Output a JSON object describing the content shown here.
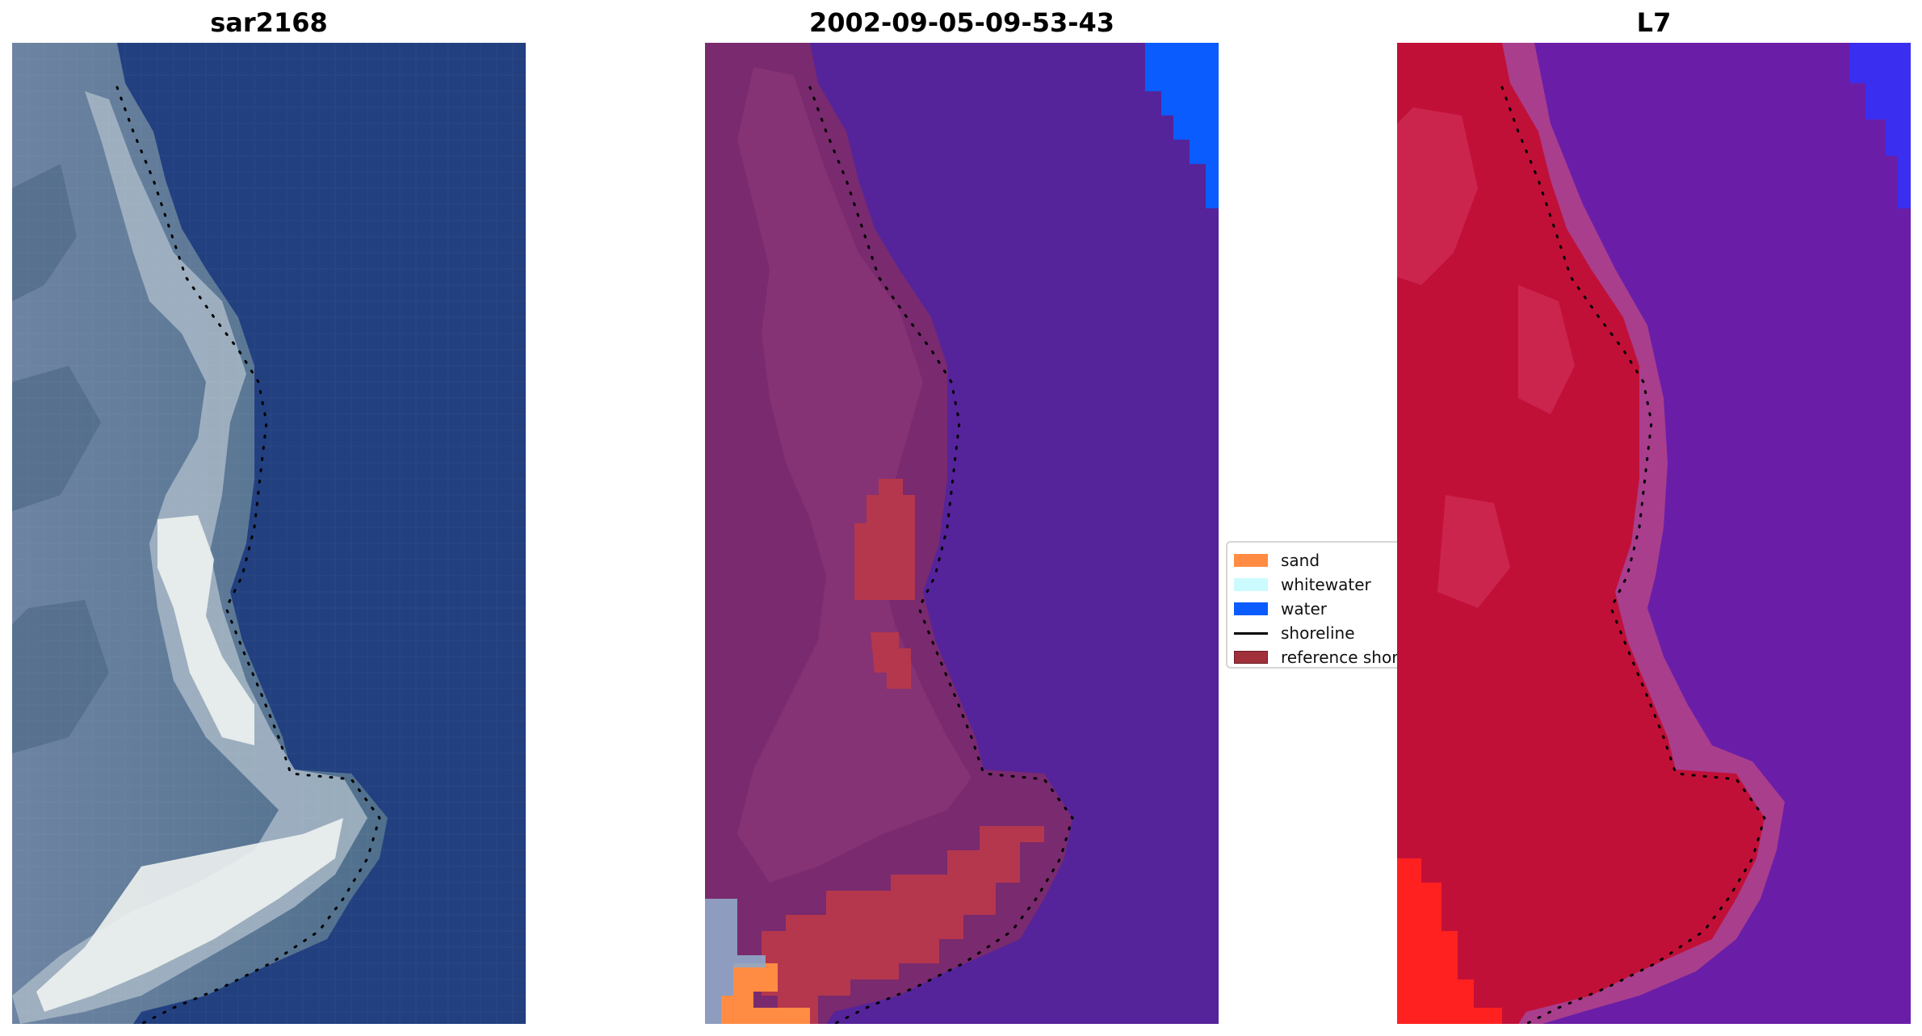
{
  "panels": {
    "left": {
      "title": "sar2168"
    },
    "middle": {
      "title": "2002-09-05-09-53-43"
    },
    "right": {
      "title": "L7"
    }
  },
  "legend": {
    "items": [
      {
        "label": "sand",
        "color": "#ff8c42",
        "kind": "patch"
      },
      {
        "label": "whitewater",
        "color": "#ccfbff",
        "kind": "patch"
      },
      {
        "label": "water",
        "color": "#0a5cff",
        "kind": "patch"
      },
      {
        "label": "shoreline",
        "color": "#000000",
        "kind": "line"
      },
      {
        "label": "reference shoreline",
        "color": "#a0303a",
        "kind": "patch"
      }
    ]
  },
  "colors": {
    "sar_water": "#1f3f7f",
    "sar_land": "#6b82a0",
    "sar_bright": "#e8eef4",
    "classified_water": "#55249a",
    "classified_land": "#7a2a6e",
    "classified_reference": "#b5374d",
    "l7_water": "#6a1ea8",
    "l7_land": "#c11038",
    "l7_bright": "#ff2020"
  }
}
